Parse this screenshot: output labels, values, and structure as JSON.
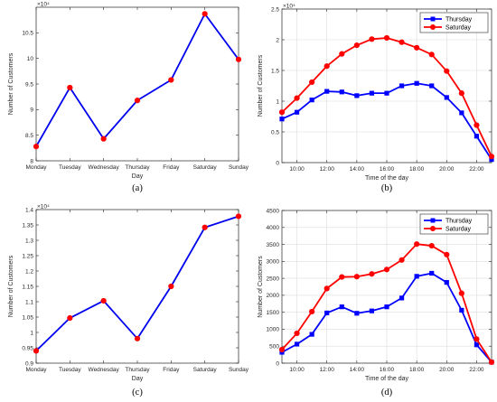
{
  "chart_data": [
    {
      "type": "line",
      "panel_label": "(a)",
      "xlabel": "Day",
      "ylabel": "Number of Customers",
      "exponent": "×10⁴",
      "categories": [
        "Monday",
        "Tuesday",
        "Wednesday",
        "Thursday",
        "Friday",
        "Saturday",
        "Sunday"
      ],
      "ylim": [
        8,
        11
      ],
      "yticks": [
        "8",
        "8.5",
        "9",
        "9.5",
        "10",
        "10.5"
      ],
      "ytick_values": [
        8,
        8.5,
        9,
        9.5,
        10,
        10.5
      ],
      "grid": false,
      "colors": {
        "line": "#0000ee",
        "marker": "#ff0000"
      },
      "series": [
        {
          "values": [
            8.28,
            9.43,
            8.43,
            9.18,
            9.58,
            10.87,
            9.98
          ]
        }
      ]
    },
    {
      "type": "line",
      "panel_label": "(b)",
      "xlabel": "Time of the day",
      "ylabel": "Number of Customers",
      "exponent": "×10⁴",
      "x": [
        9,
        10,
        11,
        12,
        13,
        14,
        15,
        16,
        17,
        18,
        19,
        20,
        21,
        22,
        23
      ],
      "xlim": [
        9,
        23
      ],
      "xticks": [
        "10:00",
        "12:00",
        "14:00",
        "16:00",
        "18:00",
        "20:00",
        "22:00"
      ],
      "xtick_values": [
        10,
        12,
        14,
        16,
        18,
        20,
        22
      ],
      "ylim": [
        0,
        2.5
      ],
      "yticks": [
        "0",
        "0.5",
        "1",
        "1.5",
        "2",
        "2.5"
      ],
      "ytick_values": [
        0,
        0.5,
        1,
        1.5,
        2,
        2.5
      ],
      "grid": true,
      "legend_position": "top-right",
      "series": [
        {
          "name": "Thursday",
          "color": "#0000ff",
          "marker": "square",
          "values": [
            0.71,
            0.82,
            1.02,
            1.16,
            1.15,
            1.09,
            1.13,
            1.13,
            1.25,
            1.29,
            1.25,
            1.06,
            0.81,
            0.43,
            0.05
          ]
        },
        {
          "name": "Saturday",
          "color": "#ff0000",
          "marker": "circle",
          "values": [
            0.82,
            1.05,
            1.31,
            1.57,
            1.77,
            1.91,
            2.01,
            2.03,
            1.96,
            1.87,
            1.76,
            1.49,
            1.13,
            0.61,
            0.1
          ]
        }
      ]
    },
    {
      "type": "line",
      "panel_label": "(c)",
      "xlabel": "Day",
      "ylabel": "Number of Customers",
      "exponent": "×10⁴",
      "categories": [
        "Monday",
        "Tuesday",
        "Wednesday",
        "Thursday",
        "Friday",
        "Saturday",
        "Sunday"
      ],
      "ylim": [
        0.9,
        1.4
      ],
      "yticks": [
        "0.9",
        "0.95",
        "1",
        "1.05",
        "1.1",
        "1.15",
        "1.2",
        "1.25",
        "1.3",
        "1.35",
        "1.4"
      ],
      "ytick_values": [
        0.9,
        0.95,
        1,
        1.05,
        1.1,
        1.15,
        1.2,
        1.25,
        1.3,
        1.35,
        1.4
      ],
      "grid": false,
      "colors": {
        "line": "#0000ee",
        "marker": "#ff0000"
      },
      "series": [
        {
          "values": [
            0.94,
            1.047,
            1.103,
            0.98,
            1.15,
            1.342,
            1.378
          ]
        }
      ]
    },
    {
      "type": "line",
      "panel_label": "(d)",
      "xlabel": "Time of the day",
      "ylabel": "Number of Customers",
      "exponent": "",
      "x": [
        9,
        10,
        11,
        12,
        13,
        14,
        15,
        16,
        17,
        18,
        19,
        20,
        21,
        22,
        23
      ],
      "xlim": [
        9,
        23
      ],
      "xticks": [
        "10:00",
        "12:00",
        "14:00",
        "16:00",
        "18:00",
        "20:00",
        "22:00"
      ],
      "xtick_values": [
        10,
        12,
        14,
        16,
        18,
        20,
        22
      ],
      "ylim": [
        0,
        4500
      ],
      "yticks": [
        "0",
        "500",
        "1000",
        "1500",
        "2000",
        "2500",
        "3000",
        "3500",
        "4000",
        "4500"
      ],
      "ytick_values": [
        0,
        500,
        1000,
        1500,
        2000,
        2500,
        3000,
        3500,
        4000,
        4500
      ],
      "grid": true,
      "legend_position": "top-right",
      "series": [
        {
          "name": "Thursday",
          "color": "#0000ff",
          "marker": "square",
          "values": [
            320,
            560,
            850,
            1480,
            1660,
            1470,
            1540,
            1660,
            1920,
            2560,
            2650,
            2380,
            1560,
            540,
            30
          ]
        },
        {
          "name": "Saturday",
          "color": "#ff0000",
          "marker": "circle",
          "values": [
            400,
            880,
            1520,
            2200,
            2540,
            2550,
            2630,
            2760,
            3040,
            3510,
            3460,
            3200,
            2060,
            710,
            30
          ]
        }
      ]
    }
  ]
}
